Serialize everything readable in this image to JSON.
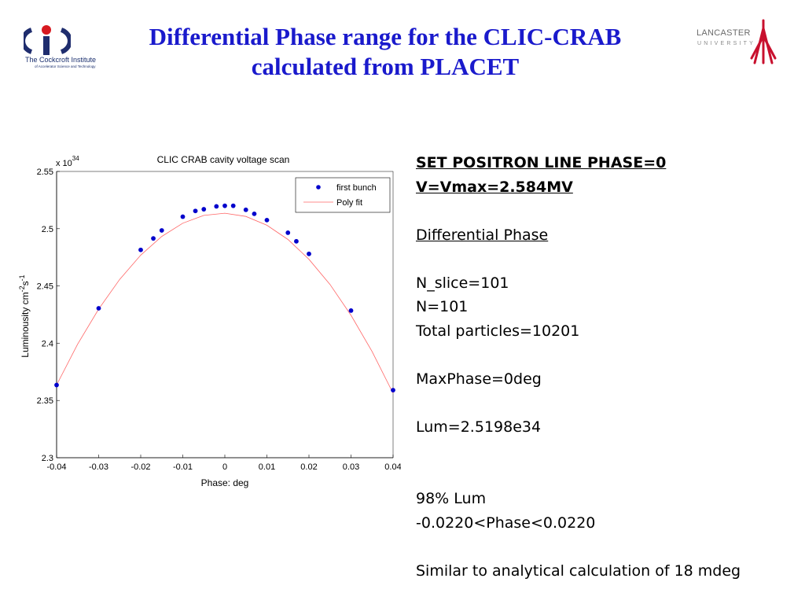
{
  "slide": {
    "title_line1": "Differential Phase range for the CLIC-CRAB",
    "title_line2": "calculated from PLACET",
    "title_color": "#1a1acc"
  },
  "logos": {
    "left": {
      "name": "The Cockcroft Institute",
      "subtitle": "of Accelerator Science and Technology",
      "icon": "cockcroft-logo-icon"
    },
    "right": {
      "name": "LANCASTER",
      "subtitle": "UNIVERSITY",
      "icon": "lancaster-logo-icon",
      "color": "#c8102e"
    }
  },
  "chart_data": {
    "type": "scatter",
    "title": "CLIC CRAB cavity voltage scan",
    "xlabel": "Phase: deg",
    "ylabel": "Luminousity cm",
    "ylabel_sup1": "-2",
    "ylabel_mid": "s",
    "ylabel_sup2": "-1",
    "y_multiplier_base": "x 10",
    "y_multiplier_exp": "34",
    "xlim": [
      -0.04,
      0.04
    ],
    "ylim": [
      2.3,
      2.55
    ],
    "x_ticks": [
      -0.04,
      -0.03,
      -0.02,
      -0.01,
      0,
      0.01,
      0.02,
      0.03,
      0.04
    ],
    "x_tick_labels": [
      "-0.04",
      "-0.03",
      "-0.02",
      "-0.01",
      "0",
      "0.01",
      "0.02",
      "0.03",
      "0.04"
    ],
    "y_ticks": [
      2.3,
      2.35,
      2.4,
      2.45,
      2.5,
      2.55
    ],
    "y_tick_labels": [
      "2.3",
      "2.35",
      "2.4",
      "2.45",
      "2.5",
      "2.55"
    ],
    "legend": {
      "placement": "top-right",
      "entries": [
        "first bunch",
        "Poly fit"
      ]
    },
    "grid": false,
    "series": [
      {
        "name": "first bunch",
        "kind": "scatter",
        "color": "#0000cc",
        "x": [
          -0.04,
          -0.03,
          -0.02,
          -0.017,
          -0.015,
          -0.01,
          -0.007,
          -0.005,
          -0.002,
          0.0,
          0.002,
          0.005,
          0.007,
          0.01,
          0.015,
          0.017,
          0.02,
          0.03,
          0.04
        ],
        "y": [
          2.3635,
          2.4305,
          2.4815,
          2.4915,
          2.4985,
          2.5105,
          2.5155,
          2.517,
          2.5195,
          2.52,
          2.52,
          2.5165,
          2.513,
          2.5075,
          2.4965,
          2.489,
          2.478,
          2.4285,
          2.359
        ]
      },
      {
        "name": "Poly fit",
        "kind": "line",
        "color": "#ff6666",
        "x": [
          -0.04,
          -0.035,
          -0.03,
          -0.025,
          -0.02,
          -0.015,
          -0.01,
          -0.005,
          0.0,
          0.005,
          0.01,
          0.015,
          0.02,
          0.025,
          0.03,
          0.035,
          0.04
        ],
        "y": [
          2.3635,
          2.3991,
          2.4298,
          2.4558,
          2.4769,
          2.4933,
          2.5048,
          2.5116,
          2.5135,
          2.5107,
          2.503,
          2.4906,
          2.4733,
          2.4513,
          2.4244,
          2.3928,
          2.3563
        ]
      }
    ]
  },
  "notes": {
    "set_line": "SET  POSITRON LINE PHASE=0",
    "v_line": "V=Vmax=2.584MV",
    "section": "Differential Phase",
    "n_slice": "N_slice=101",
    "n": "N=101",
    "total": "Total particles=10201",
    "maxphase": "MaxPhase=0deg",
    "lum": "Lum=2.5198e34",
    "lum98": "98% Lum",
    "phase_range": "-0.0220<Phase<0.0220",
    "similar": "Similar to analytical calculation of 18 mdeg"
  }
}
